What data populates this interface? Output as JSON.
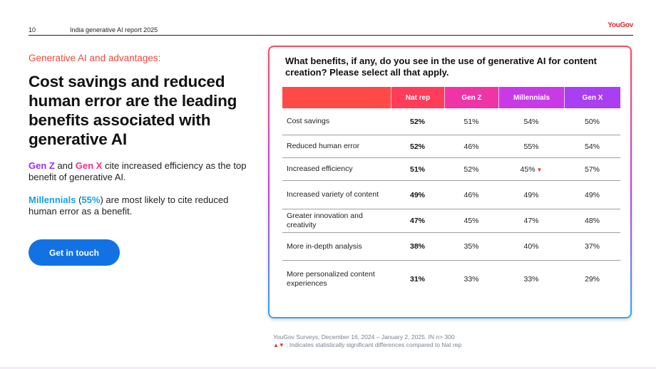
{
  "header": {
    "page_number": "10",
    "report_title": "India generative AI report 2025",
    "logo_text": "YouGov"
  },
  "left": {
    "kicker": "Generative AI and advantages:",
    "headline": "Cost savings and reduced human error are the leading benefits associated with generative AI",
    "para1": {
      "gen_z": "Gen Z",
      "and": " and ",
      "gen_x": "Gen X",
      "rest": " cite increased efficiency as the top benefit of generative AI."
    },
    "para2": {
      "millennials": "Millennials",
      "open": " (",
      "pct": "55%",
      "rest": ") are most likely to cite reduced human error as a benefit."
    },
    "cta_label": "Get in touch"
  },
  "panel": {
    "question": "What benefits, if any, do you see in the use of generative AI for content creation? Please select all that apply.",
    "columns": [
      "",
      "Nat rep",
      "Gen Z",
      "Millennials",
      "Gen X"
    ],
    "rows": [
      {
        "label": "Cost savings",
        "values": [
          "52%",
          "51%",
          "54%",
          "50%"
        ],
        "down_flag": false
      },
      {
        "label": "Reduced human error",
        "values": [
          "52%",
          "46%",
          "55%",
          "54%"
        ],
        "down_flag": false
      },
      {
        "label": "Increased efficiency",
        "values": [
          "51%",
          "52%",
          "45%",
          "57%"
        ],
        "down_flag": true
      },
      {
        "label": "Increased variety of content",
        "values": [
          "49%",
          "46%",
          "49%",
          "49%"
        ],
        "down_flag": false
      },
      {
        "label": "Greater innovation and creativity",
        "values": [
          "47%",
          "45%",
          "47%",
          "48%"
        ],
        "down_flag": false
      },
      {
        "label": "More in-depth analysis",
        "values": [
          "38%",
          "35%",
          "40%",
          "37%"
        ],
        "down_flag": false
      },
      {
        "label": "More personalized content experiences",
        "values": [
          "31%",
          "33%",
          "33%",
          "29%"
        ],
        "down_flag": false
      }
    ]
  },
  "footnote": {
    "source": "YouGov Surveys, December 16, 2024 – January 2, 2025. IN n> 300",
    "arrows": "▲▼",
    "legend": " : Indicates statistically significant differences compared to Nat rep"
  },
  "colors": {
    "accent_red": "#f0493c",
    "cta_blue": "#1372e3",
    "gen_z": "#9c2bff",
    "gen_x": "#ff2a8a",
    "millennials": "#14a0e6"
  }
}
